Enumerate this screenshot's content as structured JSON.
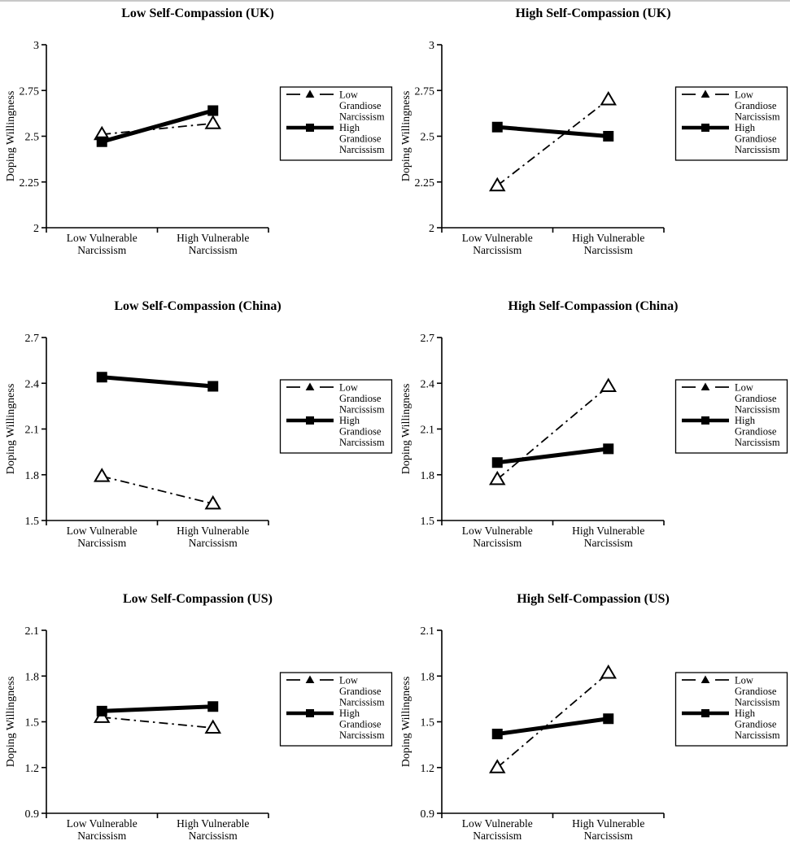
{
  "figure": {
    "background": "#ffffff",
    "ink": "#000000",
    "ylabel": "Doping Willingness",
    "categories": [
      "Low Vulnerable Narcissism",
      "High Vulnerable Narcissism"
    ],
    "category_lines": [
      [
        "Low Vulnerable",
        "Narcissism"
      ],
      [
        "High Vulnerable",
        "Narcissism"
      ]
    ],
    "legend_lines": [
      [
        "Low",
        "Grandiose",
        "Narcissism"
      ],
      [
        "High",
        "Grandiose",
        "Narcissism"
      ]
    ]
  },
  "chart_data": [
    {
      "type": "line",
      "title": "Low Self-Compassion (UK)",
      "ylabel": "Doping Willingness",
      "categories": [
        "Low Vulnerable Narcissism",
        "High Vulnerable Narcissism"
      ],
      "ylim": [
        2,
        3
      ],
      "yticks": [
        "3",
        "2.75",
        "2.5",
        "2.25",
        "2"
      ],
      "grid": false,
      "legend_position": "right",
      "series": [
        {
          "name": "Low Grandiose Narcissism",
          "line": "dash-dot",
          "marker": "open-triangle",
          "values": [
            2.51,
            2.57
          ]
        },
        {
          "name": "High Grandiose Narcissism",
          "line": "solid-thick",
          "marker": "filled-square",
          "values": [
            2.47,
            2.64
          ]
        }
      ]
    },
    {
      "type": "line",
      "title": "High Self-Compassion (UK)",
      "ylabel": "Doping Willingness",
      "categories": [
        "Low Vulnerable Narcissism",
        "High Vulnerable Narcissism"
      ],
      "ylim": [
        2,
        3
      ],
      "yticks": [
        "3",
        "2.75",
        "2.5",
        "2.25",
        "2"
      ],
      "grid": false,
      "legend_position": "right",
      "series": [
        {
          "name": "Low Grandiose Narcissism",
          "line": "dash-dot",
          "marker": "open-triangle",
          "values": [
            2.23,
            2.7
          ]
        },
        {
          "name": "High Grandiose Narcissism",
          "line": "solid-thick",
          "marker": "filled-square",
          "values": [
            2.55,
            2.5
          ]
        }
      ]
    },
    {
      "type": "line",
      "title": "Low Self-Compassion (China)",
      "ylabel": "Doping Willingness",
      "categories": [
        "Low Vulnerable Narcissism",
        "High Vulnerable Narcissism"
      ],
      "ylim": [
        1.5,
        2.7
      ],
      "yticks": [
        "2.7",
        "2.4",
        "2.1",
        "1.8",
        "1.5"
      ],
      "grid": false,
      "legend_position": "right",
      "series": [
        {
          "name": "Low Grandiose Narcissism",
          "line": "dash-dot",
          "marker": "open-triangle",
          "values": [
            1.79,
            1.61
          ]
        },
        {
          "name": "High Grandiose Narcissism",
          "line": "solid-thick",
          "marker": "filled-square",
          "values": [
            2.44,
            2.38
          ]
        }
      ]
    },
    {
      "type": "line",
      "title": "High Self-Compassion (China)",
      "ylabel": "Doping Willingness",
      "categories": [
        "Low Vulnerable Narcissism",
        "High Vulnerable Narcissism"
      ],
      "ylim": [
        1.5,
        2.7
      ],
      "yticks": [
        "2.7",
        "2.4",
        "2.1",
        "1.8",
        "1.5"
      ],
      "grid": false,
      "legend_position": "right",
      "series": [
        {
          "name": "Low Grandiose Narcissism",
          "line": "dash-dot",
          "marker": "open-triangle",
          "values": [
            1.77,
            2.38
          ]
        },
        {
          "name": "High Grandiose Narcissism",
          "line": "solid-thick",
          "marker": "filled-square",
          "values": [
            1.88,
            1.97
          ]
        }
      ]
    },
    {
      "type": "line",
      "title": "Low Self-Compassion (US)",
      "ylabel": "Doping Willingness",
      "categories": [
        "Low Vulnerable Narcissism",
        "High Vulnerable Narcissism"
      ],
      "ylim": [
        0.9,
        2.1
      ],
      "yticks": [
        "2.1",
        "1.8",
        "1.5",
        "1.2",
        "0.9"
      ],
      "grid": false,
      "legend_position": "right",
      "series": [
        {
          "name": "Low Grandiose Narcissism",
          "line": "dash-dot",
          "marker": "open-triangle",
          "values": [
            1.53,
            1.46
          ]
        },
        {
          "name": "High Grandiose Narcissism",
          "line": "solid-thick",
          "marker": "filled-square",
          "values": [
            1.57,
            1.6
          ]
        }
      ]
    },
    {
      "type": "line",
      "title": "High Self-Compassion (US)",
      "ylabel": "Doping Willingness",
      "categories": [
        "Low Vulnerable Narcissism",
        "High Vulnerable Narcissism"
      ],
      "ylim": [
        0.9,
        2.1
      ],
      "yticks": [
        "2.1",
        "1.8",
        "1.5",
        "1.2",
        "0.9"
      ],
      "grid": false,
      "legend_position": "right",
      "series": [
        {
          "name": "Low Grandiose Narcissism",
          "line": "dash-dot",
          "marker": "open-triangle",
          "values": [
            1.2,
            1.82
          ]
        },
        {
          "name": "High Grandiose Narcissism",
          "line": "solid-thick",
          "marker": "filled-square",
          "values": [
            1.42,
            1.52
          ]
        }
      ]
    }
  ]
}
